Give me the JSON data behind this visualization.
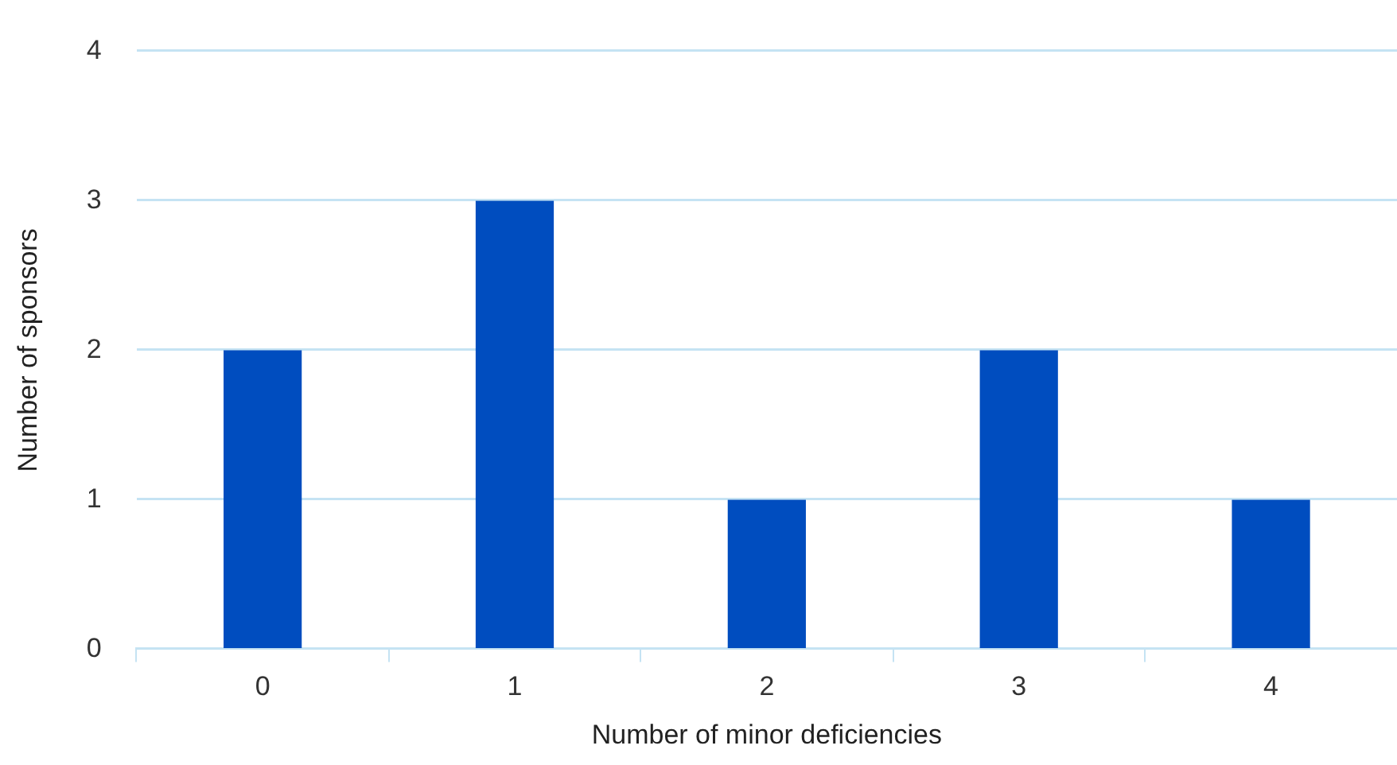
{
  "chart_data": {
    "type": "bar",
    "xlabel": "Number of minor deficiencies",
    "ylabel": "Number of sponsors",
    "categories": [
      "0",
      "1",
      "2",
      "3",
      "4"
    ],
    "values": [
      2,
      3,
      1,
      2,
      1
    ],
    "color": "#004dbf",
    "ylim": [
      0,
      4
    ],
    "yticks": [
      0,
      1,
      2,
      3,
      4
    ],
    "grid": "y",
    "legend": false
  }
}
